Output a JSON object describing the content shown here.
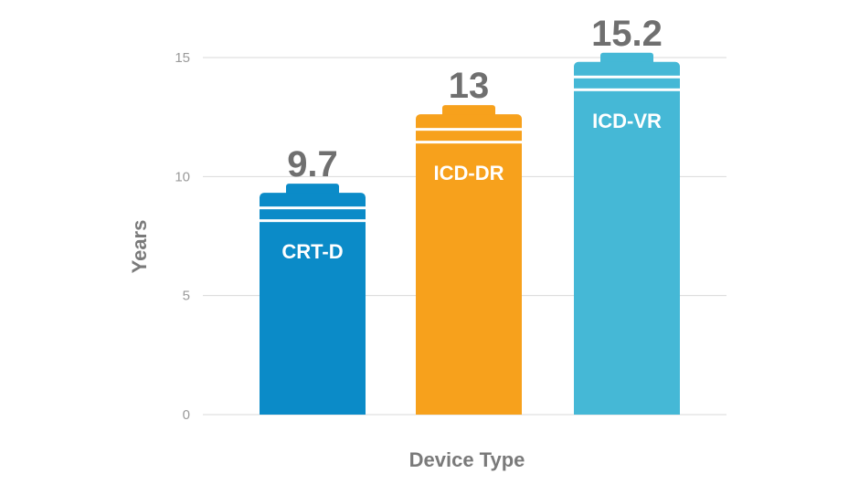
{
  "chart_data": {
    "type": "bar",
    "title": "",
    "xlabel": "Device Type",
    "ylabel": "Years",
    "ylim": [
      0,
      15
    ],
    "yticks": [
      "0",
      "5",
      "10",
      "15"
    ],
    "categories": [
      "CRT-D",
      "ICD-DR",
      "ICD-VR"
    ],
    "values": [
      9.7,
      13,
      15.2
    ],
    "value_labels": [
      "9.7",
      "13",
      "15.2"
    ],
    "colors": [
      "#0b8bc8",
      "#f7a11c",
      "#45b8d6"
    ],
    "grid": true,
    "legend": "none"
  }
}
